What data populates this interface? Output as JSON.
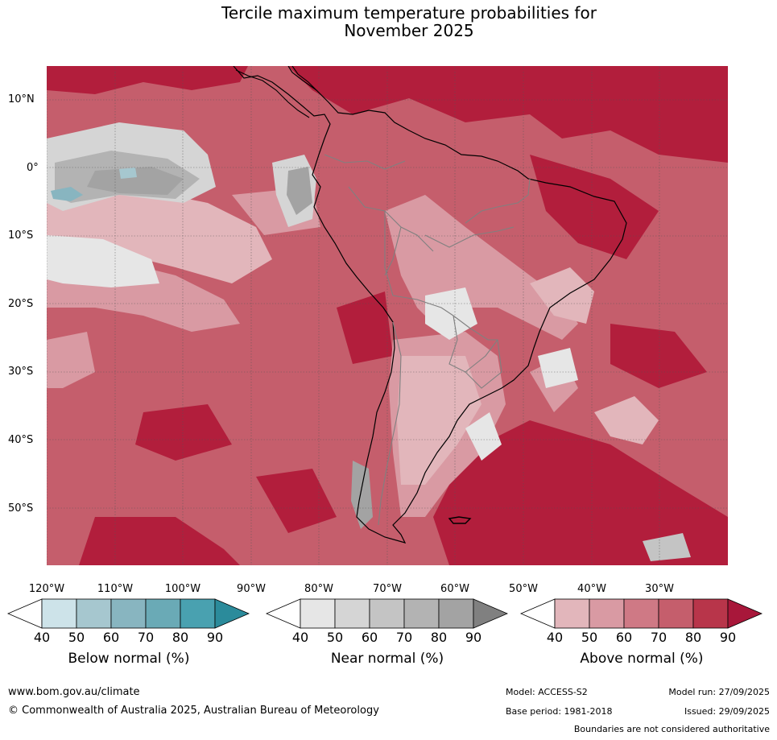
{
  "title": {
    "line1": "Tercile maximum temperature probabilities for",
    "line2": "November 2025"
  },
  "map": {
    "lat_labels": [
      "10°N",
      "0°",
      "10°S",
      "20°S",
      "30°S",
      "40°S",
      "50°S"
    ],
    "lon_labels": [
      "120°W",
      "110°W",
      "100°W",
      "90°W",
      "80°W",
      "70°W",
      "60°W",
      "50°W",
      "40°W",
      "30°W"
    ]
  },
  "colorbars": [
    {
      "title": "Below normal (%)",
      "ticks": [
        "40",
        "50",
        "60",
        "70",
        "80",
        "90"
      ],
      "colors": [
        "#ffffff",
        "#cde3e9",
        "#a6c7cf",
        "#88b5c0",
        "#6aaab6",
        "#49a1b0",
        "#2b8b9b"
      ]
    },
    {
      "title": "Near normal (%)",
      "ticks": [
        "40",
        "50",
        "60",
        "70",
        "80",
        "90"
      ],
      "colors": [
        "#ffffff",
        "#e6e6e6",
        "#d5d5d5",
        "#c4c4c4",
        "#b3b3b3",
        "#a3a3a3",
        "#808080"
      ]
    },
    {
      "title": "Above normal (%)",
      "ticks": [
        "40",
        "50",
        "60",
        "70",
        "80",
        "90"
      ],
      "colors": [
        "#ffffff",
        "#e2b6bb",
        "#d99aa3",
        "#cf7985",
        "#c55e6c",
        "#b8354a",
        "#a8173a"
      ]
    }
  ],
  "footer": {
    "url": "www.bom.gov.au/climate",
    "copyright": "© Commonwealth of Australia 2025, Australian Bureau of Meteorology",
    "model": "Model: ACCESS-S2",
    "model_run": "Model run: 27/09/2025",
    "base_period": "Base period: 1981-2018",
    "issued": "Issued: 29/09/2025",
    "disclaimer": "Boundaries are not considered authoritative"
  }
}
